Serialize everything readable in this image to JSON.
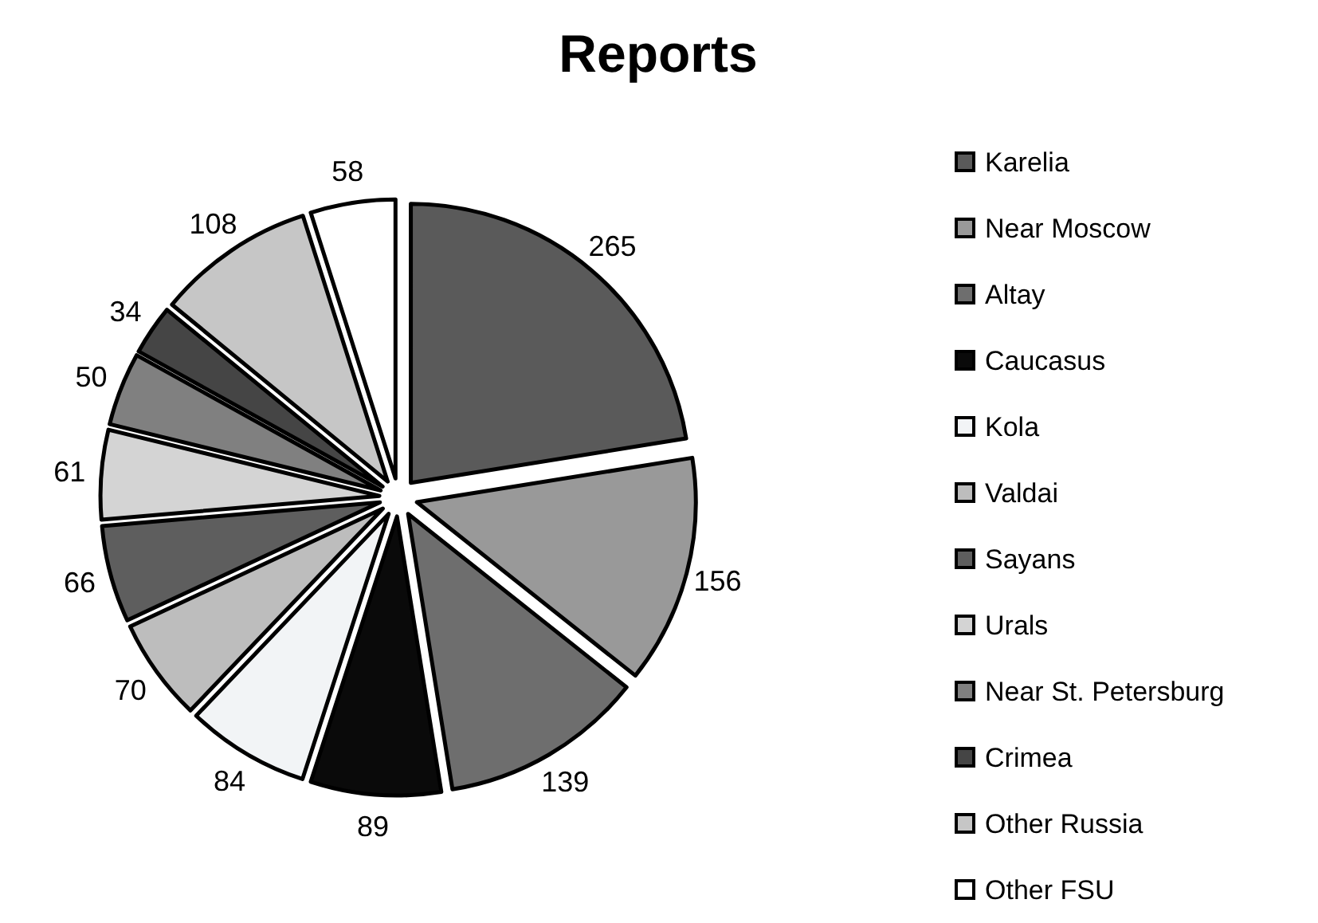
{
  "chart_data": {
    "type": "pie",
    "title": "Reports",
    "categories": [
      "Karelia",
      "Near Moscow",
      "Altay",
      "Caucasus",
      "Kola",
      "Valdai",
      "Sayans",
      "Urals",
      "Near St. Petersburg",
      "Crimea",
      "Other Russia",
      "Other FSU"
    ],
    "values": [
      265,
      156,
      139,
      89,
      84,
      70,
      66,
      61,
      50,
      34,
      108,
      58
    ],
    "colors": [
      "#5a5a5a",
      "#999999",
      "#6e6e6e",
      "#0a0a0a",
      "#f2f4f6",
      "#bdbdbd",
      "#5e5e5e",
      "#d4d4d4",
      "#808080",
      "#454545",
      "#c6c6c6",
      "#ffffff"
    ],
    "data_labels": true,
    "legend": "right"
  }
}
